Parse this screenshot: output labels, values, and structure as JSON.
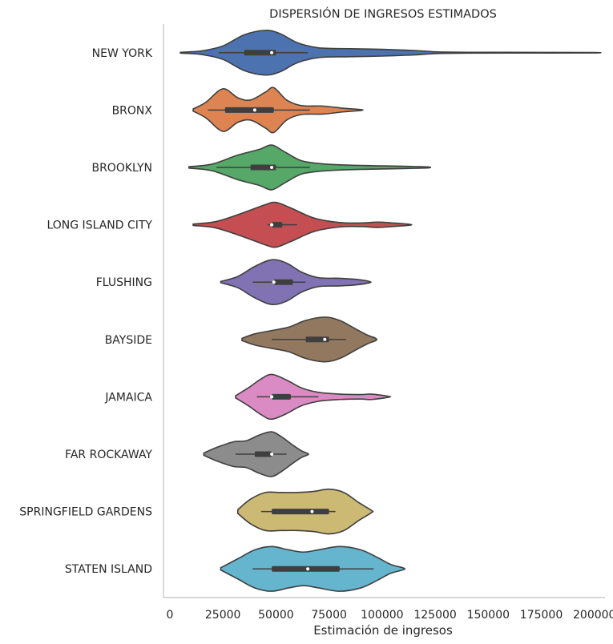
{
  "chart_data": {
    "type": "violin",
    "title": "DISPERSIÓN DE INGRESOS ESTIMADOS",
    "xlabel": "Estimación de ingresos",
    "ylabel": "",
    "xlim": [
      -3000,
      205000
    ],
    "xticks": [
      0,
      25000,
      50000,
      75000,
      100000,
      125000,
      150000,
      175000,
      200000
    ],
    "xtick_labels": [
      "0",
      "25000",
      "50000",
      "75000",
      "100000",
      "125000",
      "150000",
      "175000",
      "200000"
    ],
    "grid": false,
    "categories": [
      "NEW YORK",
      "BRONX",
      "BROOKLYN",
      "LONG ISLAND CITY",
      "FLUSHING",
      "BAYSIDE",
      "JAMAICA",
      "FAR ROCKAWAY",
      "SPRINGFIELD GARDENS",
      "STATEN ISLAND"
    ],
    "series": [
      {
        "category": "NEW YORK",
        "color": "#4c72b0",
        "min": 5000,
        "max": 200000,
        "q1": 35000,
        "median": 48000,
        "q3": 50000,
        "whisker_low": 23000,
        "whisker_high": 65000,
        "density": [
          [
            5000,
            0.02
          ],
          [
            15000,
            0.08
          ],
          [
            25000,
            0.3
          ],
          [
            35000,
            0.8
          ],
          [
            45000,
            1.0
          ],
          [
            52000,
            0.85
          ],
          [
            60000,
            0.45
          ],
          [
            70000,
            0.22
          ],
          [
            85000,
            0.18
          ],
          [
            100000,
            0.15
          ],
          [
            115000,
            0.1
          ],
          [
            125000,
            0.04
          ],
          [
            140000,
            0.02
          ],
          [
            175000,
            0.015
          ],
          [
            200000,
            0.01
          ]
        ]
      },
      {
        "category": "BRONX",
        "color": "#dd8452",
        "min": 11000,
        "max": 90000,
        "q1": 26000,
        "median": 40000,
        "q3": 49000,
        "whisker_low": 18000,
        "whisker_high": 66000,
        "density": [
          [
            11000,
            0.05
          ],
          [
            17000,
            0.35
          ],
          [
            25000,
            0.95
          ],
          [
            32000,
            0.55
          ],
          [
            38000,
            0.45
          ],
          [
            45000,
            0.8
          ],
          [
            49000,
            1.0
          ],
          [
            55000,
            0.45
          ],
          [
            62000,
            0.2
          ],
          [
            72000,
            0.18
          ],
          [
            82000,
            0.08
          ],
          [
            90000,
            0.02
          ]
        ]
      },
      {
        "category": "BROOKLYN",
        "color": "#55a868",
        "min": 9000,
        "max": 122000,
        "q1": 38000,
        "median": 48000,
        "q3": 50000,
        "whisker_low": 22000,
        "whisker_high": 66000,
        "density": [
          [
            9000,
            0.03
          ],
          [
            20000,
            0.15
          ],
          [
            32000,
            0.55
          ],
          [
            42000,
            0.8
          ],
          [
            48000,
            1.0
          ],
          [
            54000,
            0.7
          ],
          [
            62000,
            0.3
          ],
          [
            72000,
            0.16
          ],
          [
            85000,
            0.1
          ],
          [
            100000,
            0.07
          ],
          [
            115000,
            0.04
          ],
          [
            122000,
            0.02
          ]
        ]
      },
      {
        "category": "LONG ISLAND CITY",
        "color": "#c44e52",
        "min": 11000,
        "max": 113000,
        "q1": 48000,
        "median": 48000,
        "q3": 53000,
        "whisker_low": 46000,
        "whisker_high": 60000,
        "density": [
          [
            11000,
            0.03
          ],
          [
            22000,
            0.15
          ],
          [
            35000,
            0.55
          ],
          [
            45000,
            0.9
          ],
          [
            50000,
            1.0
          ],
          [
            57000,
            0.75
          ],
          [
            68000,
            0.3
          ],
          [
            80000,
            0.1
          ],
          [
            90000,
            0.08
          ],
          [
            98000,
            0.12
          ],
          [
            105000,
            0.08
          ],
          [
            113000,
            0.02
          ]
        ]
      },
      {
        "category": "FLUSHING",
        "color": "#8172b3",
        "min": 24000,
        "max": 94000,
        "q1": 49000,
        "median": 49000,
        "q3": 58000,
        "whisker_low": 39000,
        "whisker_high": 64000,
        "density": [
          [
            24000,
            0.03
          ],
          [
            32000,
            0.25
          ],
          [
            40000,
            0.7
          ],
          [
            48000,
            1.0
          ],
          [
            55000,
            0.85
          ],
          [
            62000,
            0.45
          ],
          [
            70000,
            0.2
          ],
          [
            80000,
            0.17
          ],
          [
            88000,
            0.12
          ],
          [
            94000,
            0.03
          ]
        ]
      },
      {
        "category": "BAYSIDE",
        "color": "#937860",
        "min": 34000,
        "max": 97000,
        "q1": 64000,
        "median": 73000,
        "q3": 75000,
        "whisker_low": 48000,
        "whisker_high": 83000,
        "density": [
          [
            34000,
            0.05
          ],
          [
            40000,
            0.25
          ],
          [
            48000,
            0.4
          ],
          [
            56000,
            0.55
          ],
          [
            64000,
            0.85
          ],
          [
            73000,
            1.0
          ],
          [
            80000,
            0.85
          ],
          [
            87000,
            0.5
          ],
          [
            93000,
            0.2
          ],
          [
            97000,
            0.05
          ]
        ]
      },
      {
        "category": "JAMAICA",
        "color": "#da8bc3",
        "min": 31000,
        "max": 103000,
        "q1": 48000,
        "median": 48000,
        "q3": 57000,
        "whisker_low": 41000,
        "whisker_high": 70000,
        "density": [
          [
            31000,
            0.05
          ],
          [
            37000,
            0.4
          ],
          [
            43000,
            0.8
          ],
          [
            48000,
            1.0
          ],
          [
            55000,
            0.75
          ],
          [
            62000,
            0.4
          ],
          [
            70000,
            0.2
          ],
          [
            80000,
            0.12
          ],
          [
            90000,
            0.1
          ],
          [
            95000,
            0.12
          ],
          [
            103000,
            0.02
          ]
        ]
      },
      {
        "category": "FAR ROCKAWAY",
        "color": "#8c8c8c",
        "min": 16000,
        "max": 65000,
        "q1": 40000,
        "median": 48000,
        "q3": 48000,
        "whisker_low": 31000,
        "whisker_high": 55000,
        "density": [
          [
            16000,
            0.05
          ],
          [
            22000,
            0.3
          ],
          [
            30000,
            0.55
          ],
          [
            36000,
            0.6
          ],
          [
            42000,
            0.85
          ],
          [
            48000,
            1.0
          ],
          [
            53000,
            0.75
          ],
          [
            58000,
            0.4
          ],
          [
            62000,
            0.15
          ],
          [
            65000,
            0.03
          ]
        ]
      },
      {
        "category": "SPRINGFIELD GARDENS",
        "color": "#ccb974",
        "min": 32000,
        "max": 95000,
        "q1": 48000,
        "median": 67000,
        "q3": 75000,
        "whisker_low": 43000,
        "whisker_high": 78000,
        "density": [
          [
            32000,
            0.08
          ],
          [
            38000,
            0.55
          ],
          [
            45000,
            0.85
          ],
          [
            52000,
            0.85
          ],
          [
            60000,
            0.85
          ],
          [
            68000,
            0.9
          ],
          [
            75000,
            1.0
          ],
          [
            82000,
            0.85
          ],
          [
            89000,
            0.4
          ],
          [
            95000,
            0.05
          ]
        ]
      },
      {
        "category": "STATEN ISLAND",
        "color": "#64b5cd",
        "min": 24000,
        "max": 110000,
        "q1": 48000,
        "median": 65000,
        "q3": 80000,
        "whisker_low": 39000,
        "whisker_high": 96000,
        "density": [
          [
            24000,
            0.05
          ],
          [
            32000,
            0.45
          ],
          [
            40000,
            0.85
          ],
          [
            48000,
            1.0
          ],
          [
            56000,
            0.85
          ],
          [
            63000,
            0.75
          ],
          [
            70000,
            0.85
          ],
          [
            80000,
            1.0
          ],
          [
            90000,
            0.85
          ],
          [
            98000,
            0.5
          ],
          [
            104000,
            0.2
          ],
          [
            110000,
            0.04
          ]
        ]
      }
    ]
  }
}
